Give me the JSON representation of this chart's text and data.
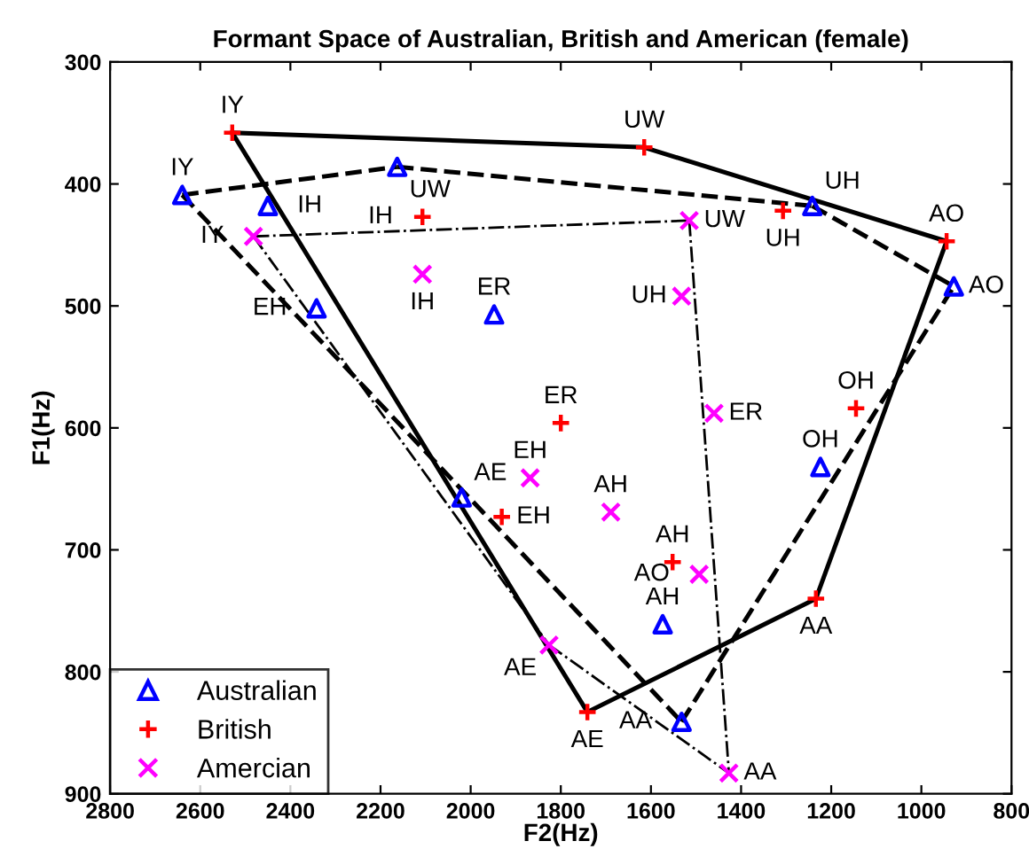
{
  "chart_data": {
    "type": "scatter",
    "title": "Formant Space of Australian, British and American (female)",
    "xlabel": "F2(Hz)",
    "ylabel": "F1(Hz)",
    "xlim": [
      2800,
      800
    ],
    "ylim": [
      900,
      300
    ],
    "xticks": [
      2800,
      2600,
      2400,
      2200,
      2000,
      1800,
      1600,
      1400,
      1200,
      1000,
      800
    ],
    "yticks": [
      300,
      400,
      500,
      600,
      700,
      800,
      900
    ],
    "grid": false,
    "legend": "bottom left",
    "series": [
      {
        "name": "Australian",
        "type": "scatter",
        "marker": "triangle",
        "color": "#0000ff",
        "x": [
          2640,
          2450,
          2163,
          2342,
          1948,
          2020,
          1242,
          928,
          1224,
          1574,
          1532
        ],
        "values": [
          409,
          418,
          386,
          502,
          507,
          657,
          418,
          484,
          632,
          761,
          841
        ]
      },
      {
        "name": "British",
        "type": "scatter",
        "marker": "plus",
        "color": "#ff0000",
        "x": [
          2529,
          1615,
          2107,
          1307,
          944,
          1800,
          1931,
          1145,
          1552,
          1234,
          1741
        ],
        "values": [
          358,
          370,
          427,
          422,
          447,
          596,
          673,
          584,
          710,
          740,
          833
        ]
      },
      {
        "name": "Amercian",
        "type": "scatter",
        "marker": "cross",
        "color": "#ff00ff",
        "x": [
          2482,
          1515,
          2107,
          1532,
          1460,
          1868,
          1689,
          1493,
          1826,
          1427
        ],
        "values": [
          443,
          430,
          474,
          492,
          588,
          641,
          669,
          720,
          778,
          883
        ]
      },
      {
        "type": "line",
        "color": "#000000",
        "line_style": "solid",
        "marker": "none",
        "x": [
          2529,
          1615
        ],
        "values": [
          358,
          370
        ]
      },
      {
        "type": "line",
        "color": "#000000",
        "line_style": "solid",
        "marker": "none",
        "x": [
          1615,
          944
        ],
        "values": [
          370,
          447
        ]
      },
      {
        "type": "line",
        "color": "#000000",
        "line_style": "solid",
        "marker": "none",
        "x": [
          1234,
          944
        ],
        "values": [
          740,
          447
        ]
      },
      {
        "type": "line",
        "color": "#000000",
        "line_style": "solid",
        "marker": "none",
        "x": [
          1741,
          1234
        ],
        "values": [
          833,
          740
        ]
      },
      {
        "type": "line",
        "color": "#000000",
        "line_style": "solid",
        "marker": "none",
        "x": [
          2529,
          1741
        ],
        "values": [
          358,
          833
        ]
      },
      {
        "type": "line",
        "color": "#000000",
        "line_style": "dashed",
        "marker": "none",
        "x": [
          2640,
          2163
        ],
        "values": [
          409,
          386
        ]
      },
      {
        "type": "line",
        "color": "#000000",
        "line_style": "dashed",
        "marker": "none",
        "x": [
          2163,
          1242
        ],
        "values": [
          386,
          418
        ]
      },
      {
        "type": "line",
        "color": "#000000",
        "line_style": "dashed",
        "marker": "none",
        "x": [
          1242,
          928
        ],
        "values": [
          418,
          484
        ]
      },
      {
        "type": "line",
        "color": "#000000",
        "line_style": "dashed",
        "marker": "none",
        "x": [
          1532,
          928
        ],
        "values": [
          841,
          484
        ]
      },
      {
        "type": "line",
        "color": "#000000",
        "line_style": "dashed",
        "marker": "none",
        "x": [
          2640,
          1532
        ],
        "values": [
          409,
          841
        ]
      },
      {
        "type": "line",
        "color": "#000000",
        "line_style": "dashdot",
        "marker": "none",
        "x": [
          2482,
          1515
        ],
        "values": [
          443,
          430
        ]
      },
      {
        "type": "line",
        "color": "#000000",
        "line_style": "dashdot",
        "marker": "none",
        "x": [
          1515,
          1427
        ],
        "values": [
          430,
          883
        ]
      },
      {
        "type": "line",
        "color": "#000000",
        "line_style": "dashdot",
        "marker": "none",
        "x": [
          1826,
          1427
        ],
        "values": [
          778,
          883
        ]
      },
      {
        "type": "line",
        "color": "#000000",
        "line_style": "dashdot",
        "marker": "none",
        "x": [
          2482,
          1826
        ],
        "values": [
          443,
          778
        ]
      }
    ],
    "annotations": [
      {
        "text": "IY",
        "x": 2640,
        "y": 409
      },
      {
        "text": "IH",
        "x": 2450,
        "y": 418
      },
      {
        "text": "UW",
        "x": 2163,
        "y": 386
      },
      {
        "text": "EH",
        "x": 2342,
        "y": 502
      },
      {
        "text": "ER",
        "x": 1948,
        "y": 507
      },
      {
        "text": "AE",
        "x": 2020,
        "y": 657
      },
      {
        "text": "UH",
        "x": 1242,
        "y": 418
      },
      {
        "text": "AO",
        "x": 928,
        "y": 484
      },
      {
        "text": "OH",
        "x": 1224,
        "y": 632
      },
      {
        "text": "AH",
        "x": 1574,
        "y": 761
      },
      {
        "text": "AA",
        "x": 1532,
        "y": 841
      },
      {
        "text": "IY",
        "x": 2529,
        "y": 358
      },
      {
        "text": "UW",
        "x": 1615,
        "y": 370
      },
      {
        "text": "IH",
        "x": 2107,
        "y": 427
      },
      {
        "text": "UH",
        "x": 1307,
        "y": 422
      },
      {
        "text": "AO",
        "x": 944,
        "y": 447
      },
      {
        "text": "ER",
        "x": 1800,
        "y": 596
      },
      {
        "text": "EH",
        "x": 1931,
        "y": 673
      },
      {
        "text": "OH",
        "x": 1145,
        "y": 584
      },
      {
        "text": "AH",
        "x": 1552,
        "y": 710
      },
      {
        "text": "AA",
        "x": 1234,
        "y": 740
      },
      {
        "text": "AE",
        "x": 1741,
        "y": 833
      },
      {
        "text": "IY",
        "x": 2482,
        "y": 443
      },
      {
        "text": "UW",
        "x": 1515,
        "y": 430
      },
      {
        "text": "IH",
        "x": 2107,
        "y": 474
      },
      {
        "text": "UH",
        "x": 1532,
        "y": 492
      },
      {
        "text": "ER",
        "x": 1460,
        "y": 588
      },
      {
        "text": "EH",
        "x": 1868,
        "y": 641
      },
      {
        "text": "AH",
        "x": 1689,
        "y": 669
      },
      {
        "text": "AO",
        "x": 1493,
        "y": 720
      },
      {
        "text": "AE",
        "x": 1826,
        "y": 778
      },
      {
        "text": "AA",
        "x": 1427,
        "y": 883
      }
    ]
  }
}
